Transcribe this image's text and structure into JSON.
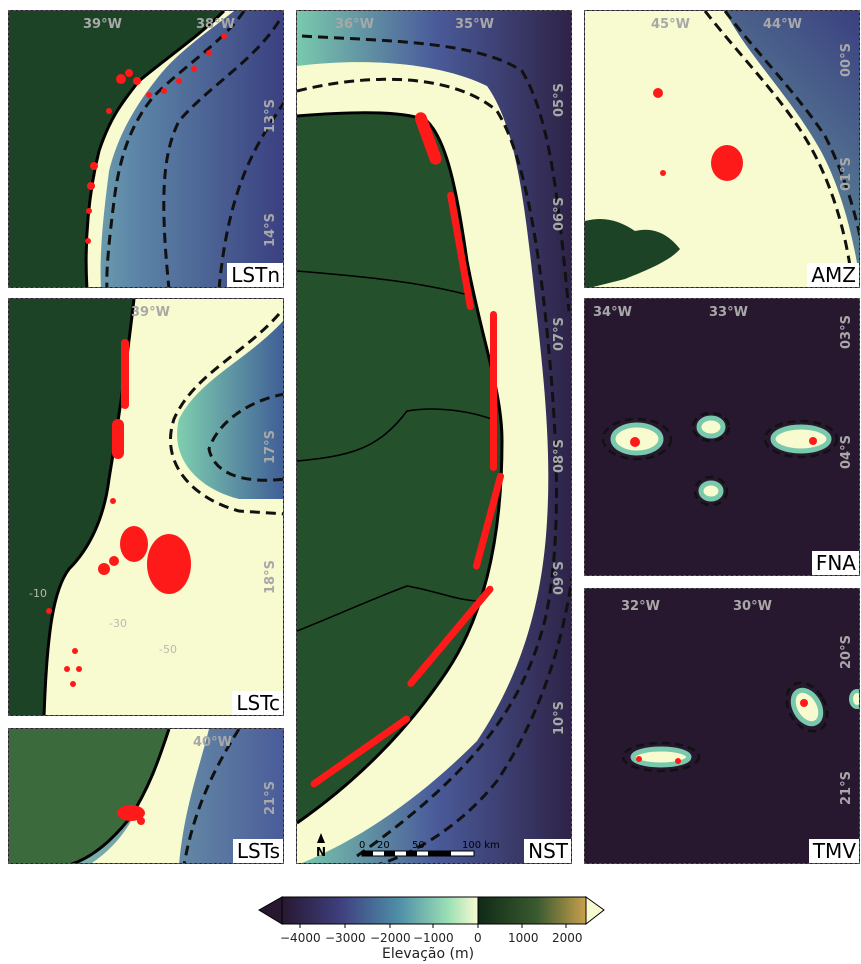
{
  "panels": {
    "lstn": {
      "label": "LSTn",
      "lon_ticks": [
        "39°W",
        "38°W"
      ],
      "lat_ticks": [
        "13°S",
        "14°S"
      ]
    },
    "lstc": {
      "label": "LSTc",
      "lon_ticks": [
        "39°W"
      ],
      "lat_ticks": [
        "17°S",
        "18°S"
      ],
      "contour_labels": [
        "-10",
        "-30",
        "-50"
      ]
    },
    "lsts": {
      "label": "LSTs",
      "lon_ticks": [
        "40°W"
      ],
      "lat_ticks": [
        "21°S"
      ]
    },
    "nst": {
      "label": "NST",
      "lon_ticks": [
        "36°W",
        "35°W"
      ],
      "lat_ticks": [
        "05°S",
        "06°S",
        "07°S",
        "08°S",
        "09°S",
        "10°S"
      ],
      "north_arrow": "N",
      "scale_ticks": [
        "0",
        "20",
        "50",
        "100 km"
      ]
    },
    "amz": {
      "label": "AMZ",
      "lon_ticks": [
        "45°W",
        "44°W"
      ],
      "lat_ticks": [
        "00°S",
        "01°S"
      ]
    },
    "fna": {
      "label": "FNA",
      "lon_ticks": [
        "34°W",
        "33°W"
      ],
      "lat_ticks": [
        "03°S",
        "04°S"
      ]
    },
    "tmv": {
      "label": "TMV",
      "lon_ticks": [
        "32°W",
        "30°W"
      ],
      "lat_ticks": [
        "20°S",
        "21°S"
      ]
    }
  },
  "colorbar": {
    "title": "Elevação (m)",
    "ticks": [
      "−4000",
      "−3000",
      "−2000",
      "−1000",
      "0",
      "1000",
      "2000"
    ],
    "range": [
      -4500,
      2600
    ],
    "colors": {
      "deep": "#27182f",
      "mid": "#4a5b9a",
      "shelf": "#f8fbcf",
      "land": "#173a21",
      "high": "#c8a04c"
    },
    "point_color": "#ff1a1a"
  }
}
